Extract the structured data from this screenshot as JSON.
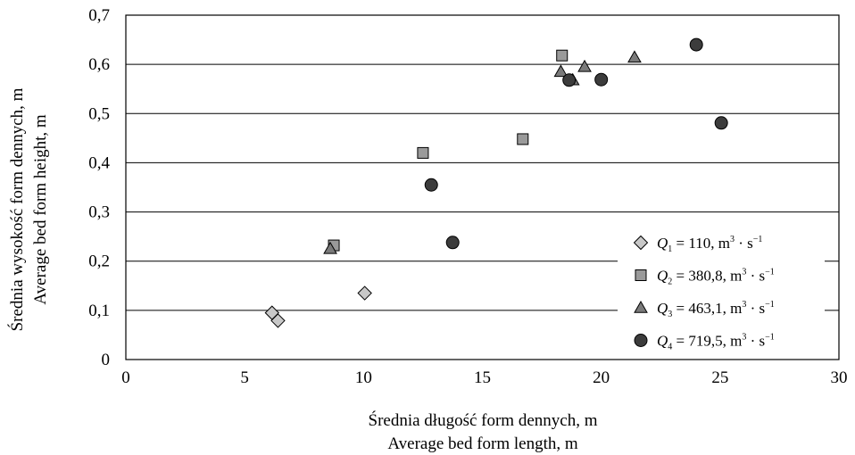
{
  "chart_data": {
    "type": "scatter",
    "xlabel": [
      "Średnia długość form dennych, m",
      "Average bed form length, m"
    ],
    "ylabel": [
      "Średnia wysokość form dennych, m",
      "Average bed form height, m"
    ],
    "xlim": [
      0,
      30
    ],
    "ylim": [
      0,
      0.7
    ],
    "x_ticks": [
      "0",
      "5",
      "10",
      "15",
      "20",
      "25",
      "30"
    ],
    "y_ticks": [
      "0",
      "0,1",
      "0,2",
      "0,3",
      "0,4",
      "0,5",
      "0,6",
      "0,7"
    ],
    "grid": "horizontal",
    "legend_position": "right",
    "series": [
      {
        "name": "Q1 = 110, m3 · s−1",
        "legend": {
          "q": "Q",
          "sub": "1",
          "rest": " = 110, m",
          "sup1": "3",
          "mid": " · s",
          "sup2": "−1"
        },
        "marker": "diamond",
        "color": "#c8c8c8",
        "points": [
          [
            6.15,
            0.095
          ],
          [
            6.4,
            0.079
          ],
          [
            10.05,
            0.135
          ]
        ]
      },
      {
        "name": "Q2 = 380,8, m3 · s−1",
        "legend": {
          "q": "Q",
          "sub": "2",
          "rest": " = 380,8, m",
          "sup1": "3",
          "mid": " · s",
          "sup2": "−1"
        },
        "marker": "square",
        "color": "#9a9a9a",
        "points": [
          [
            8.75,
            0.232
          ],
          [
            12.5,
            0.42
          ],
          [
            16.7,
            0.448
          ],
          [
            18.35,
            0.618
          ]
        ]
      },
      {
        "name": "Q3 = 463,1, m3 · s−1",
        "legend": {
          "q": "Q",
          "sub": "3",
          "rest": " = 463,1, m",
          "sup1": "3",
          "mid": " · s",
          "sup2": "−1"
        },
        "marker": "triangle",
        "color": "#7a7a7a",
        "points": [
          [
            8.6,
            0.225
          ],
          [
            18.3,
            0.585
          ],
          [
            18.8,
            0.568
          ],
          [
            19.3,
            0.595
          ],
          [
            21.4,
            0.614
          ]
        ]
      },
      {
        "name": "Q4 = 719,5, m3 · s−1",
        "legend": {
          "q": "Q",
          "sub": "4",
          "rest": " = 719,5, m",
          "sup1": "3",
          "mid": " · s",
          "sup2": "−1"
        },
        "marker": "circle",
        "color": "#3c3c3c",
        "points": [
          [
            12.85,
            0.355
          ],
          [
            13.75,
            0.238
          ],
          [
            18.65,
            0.568
          ],
          [
            20.0,
            0.569
          ],
          [
            24.0,
            0.64
          ],
          [
            25.05,
            0.481
          ]
        ]
      }
    ]
  }
}
